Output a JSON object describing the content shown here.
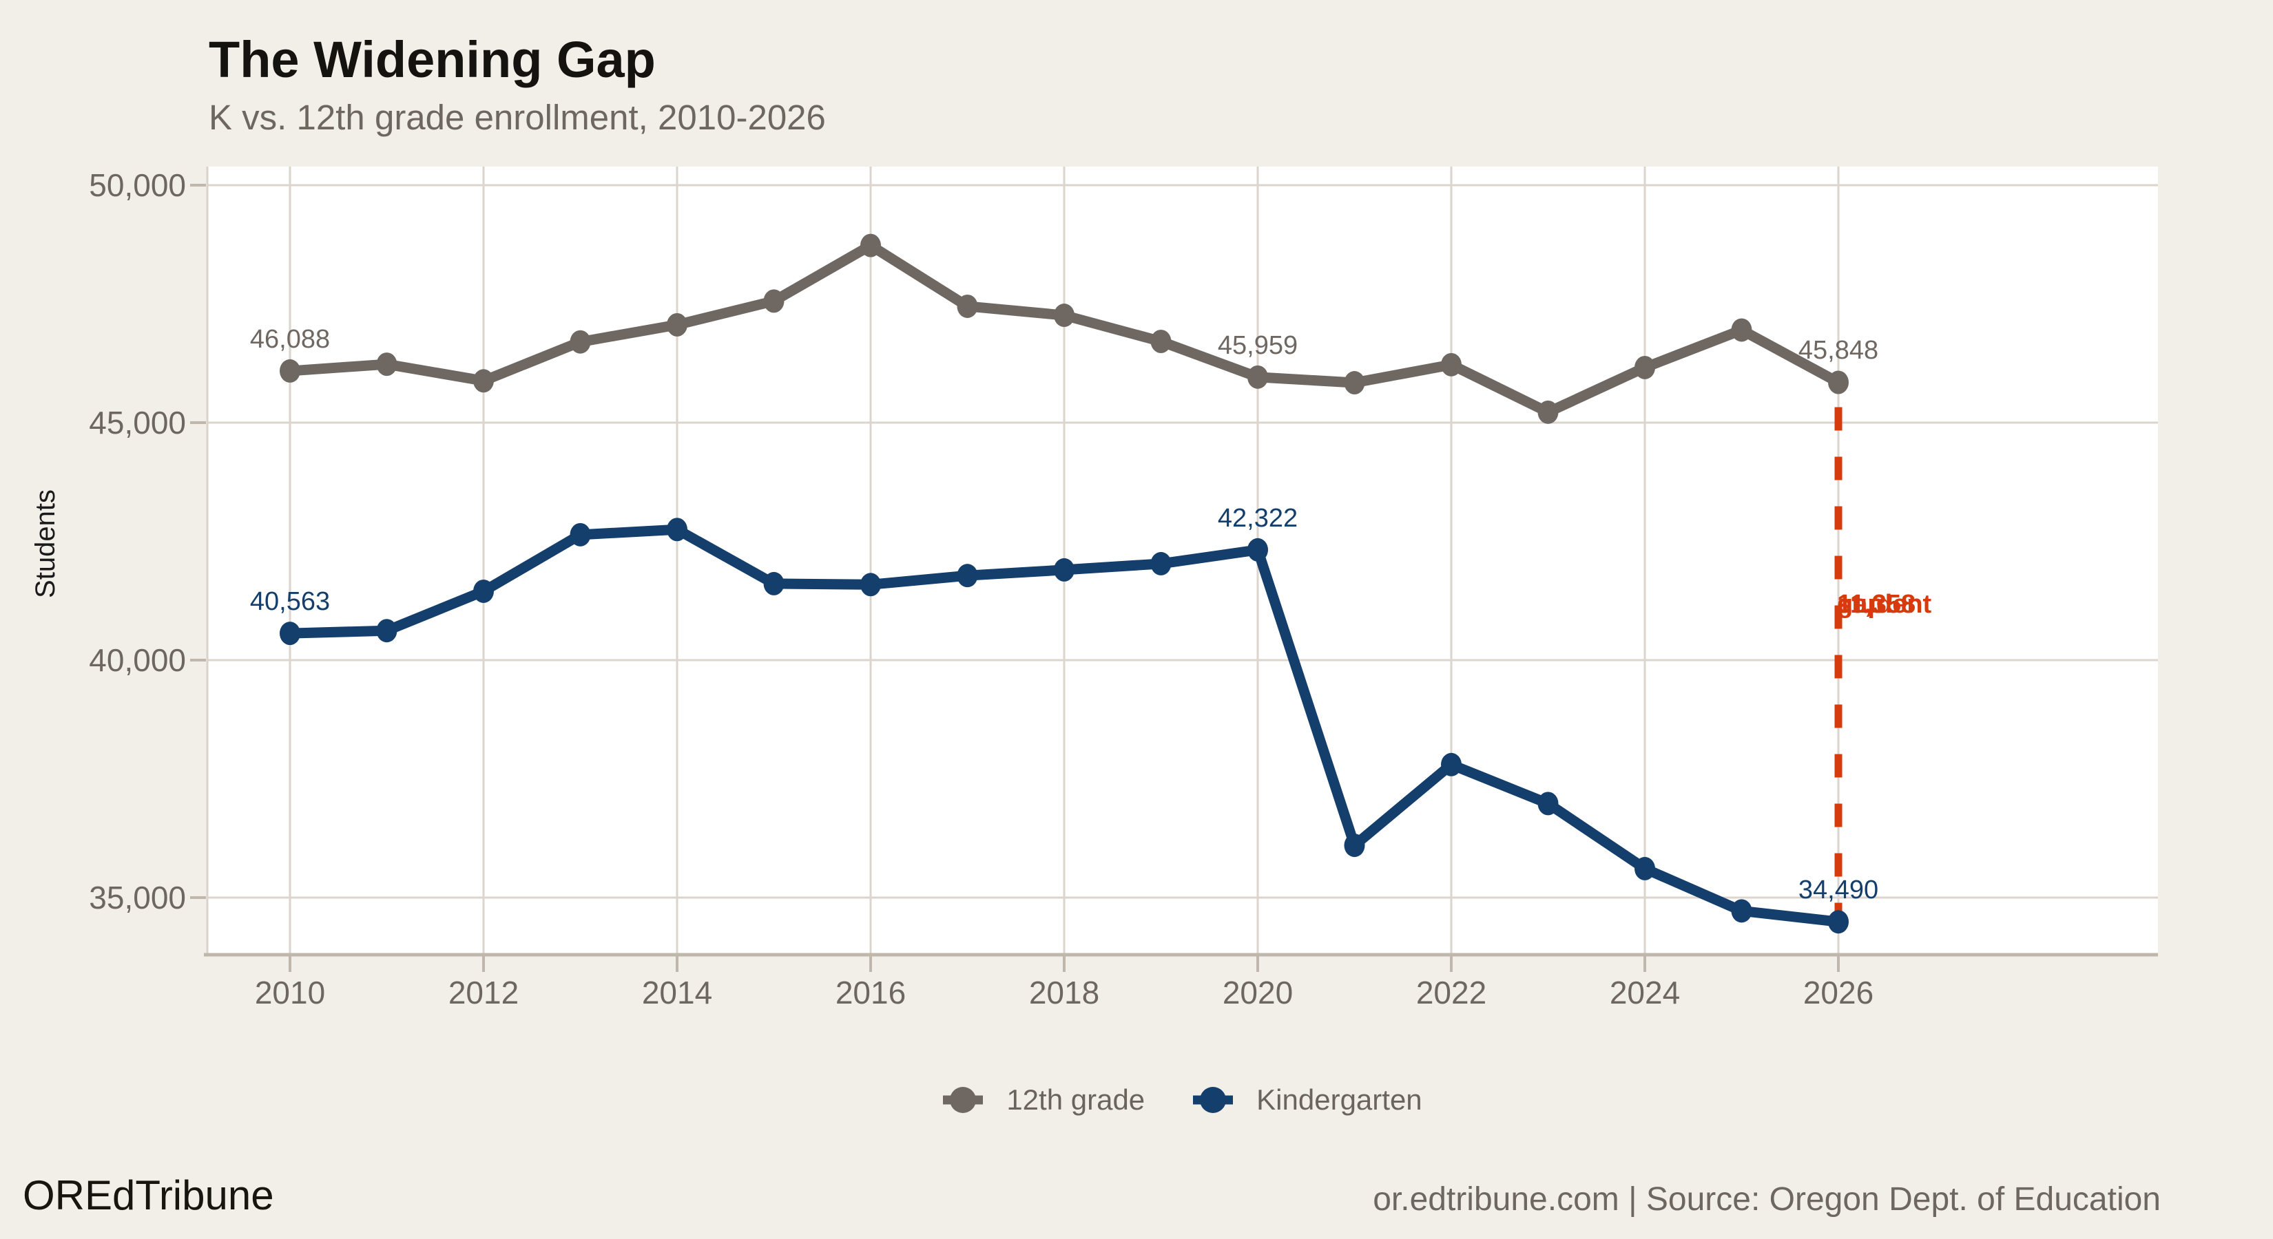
{
  "colors": {
    "background": "#F2EFE9",
    "plot": "#FFFFFF",
    "gridline": "#DBD5CD",
    "axis": "#BFB7AC",
    "panel_border": "#D9D3CB",
    "text_muted": "#6E6760",
    "text_dark": "#151310",
    "accent_gray": "#6F6862",
    "accent_navy": "#143E6C",
    "accent_red": "#D63B0E"
  },
  "header": {
    "title": "The Widening Gap",
    "subtitle": "K vs. 12th grade enrollment, 2010-2026"
  },
  "chart_data": {
    "type": "line",
    "title": "The Widening Gap",
    "subtitle": "K vs. 12th grade enrollment, 2010-2026",
    "xlabel": "",
    "ylabel": "Students",
    "x": [
      2010,
      2011,
      2012,
      2013,
      2014,
      2015,
      2016,
      2017,
      2018,
      2019,
      2020,
      2021,
      2022,
      2023,
      2024,
      2025,
      2026
    ],
    "series": [
      {
        "name": "12th grade",
        "color": "#6F6862",
        "values": [
          46088,
          46230,
          45880,
          46700,
          47060,
          47560,
          48730,
          47450,
          47260,
          46710,
          45959,
          45840,
          46220,
          45220,
          46160,
          46950,
          45848
        ]
      },
      {
        "name": "Kindergarten",
        "color": "#143E6C",
        "values": [
          40563,
          40620,
          41450,
          42640,
          42750,
          41610,
          41590,
          41780,
          41900,
          42030,
          42322,
          36100,
          37800,
          36980,
          35610,
          34720,
          34490
        ]
      }
    ],
    "ylim": [
      33800,
      50400
    ],
    "xlim": [
      2009.15,
      2029.3
    ],
    "grid": true,
    "legend_position": "bottom",
    "y_ticks": [
      {
        "value": 35000,
        "label": "35,000"
      },
      {
        "value": 40000,
        "label": "40,000"
      },
      {
        "value": 45000,
        "label": "45,000"
      },
      {
        "value": 50000,
        "label": "50,000"
      }
    ],
    "x_ticks": [
      {
        "value": 2010,
        "label": "2010"
      },
      {
        "value": 2012,
        "label": "2012"
      },
      {
        "value": 2014,
        "label": "2014"
      },
      {
        "value": 2016,
        "label": "2016"
      },
      {
        "value": 2018,
        "label": "2018"
      },
      {
        "value": 2020,
        "label": "2020"
      },
      {
        "value": 2022,
        "label": "2022"
      },
      {
        "value": 2024,
        "label": "2024"
      },
      {
        "value": 2026,
        "label": "2026"
      }
    ]
  },
  "annotations": {
    "point_labels": [
      {
        "series": "12th grade",
        "year": 2010,
        "text": "46,088"
      },
      {
        "series": "12th grade",
        "year": 2020,
        "text": "45,959"
      },
      {
        "series": "12th grade",
        "year": 2026,
        "text": "45,848"
      },
      {
        "series": "Kindergarten",
        "year": 2010,
        "text": "40,563"
      },
      {
        "series": "Kindergarten",
        "year": 2020,
        "text": "42,322"
      },
      {
        "series": "Kindergarten",
        "year": 2026,
        "text": "34,490"
      }
    ],
    "gap": {
      "year": 2026,
      "line1": "11,358",
      "line2": "student",
      "line3": "gap",
      "color": "#D63B0E"
    }
  },
  "footer": {
    "brand": "OREdTribune",
    "source": "or.edtribune.com | Source: Oregon Dept. of Education"
  }
}
